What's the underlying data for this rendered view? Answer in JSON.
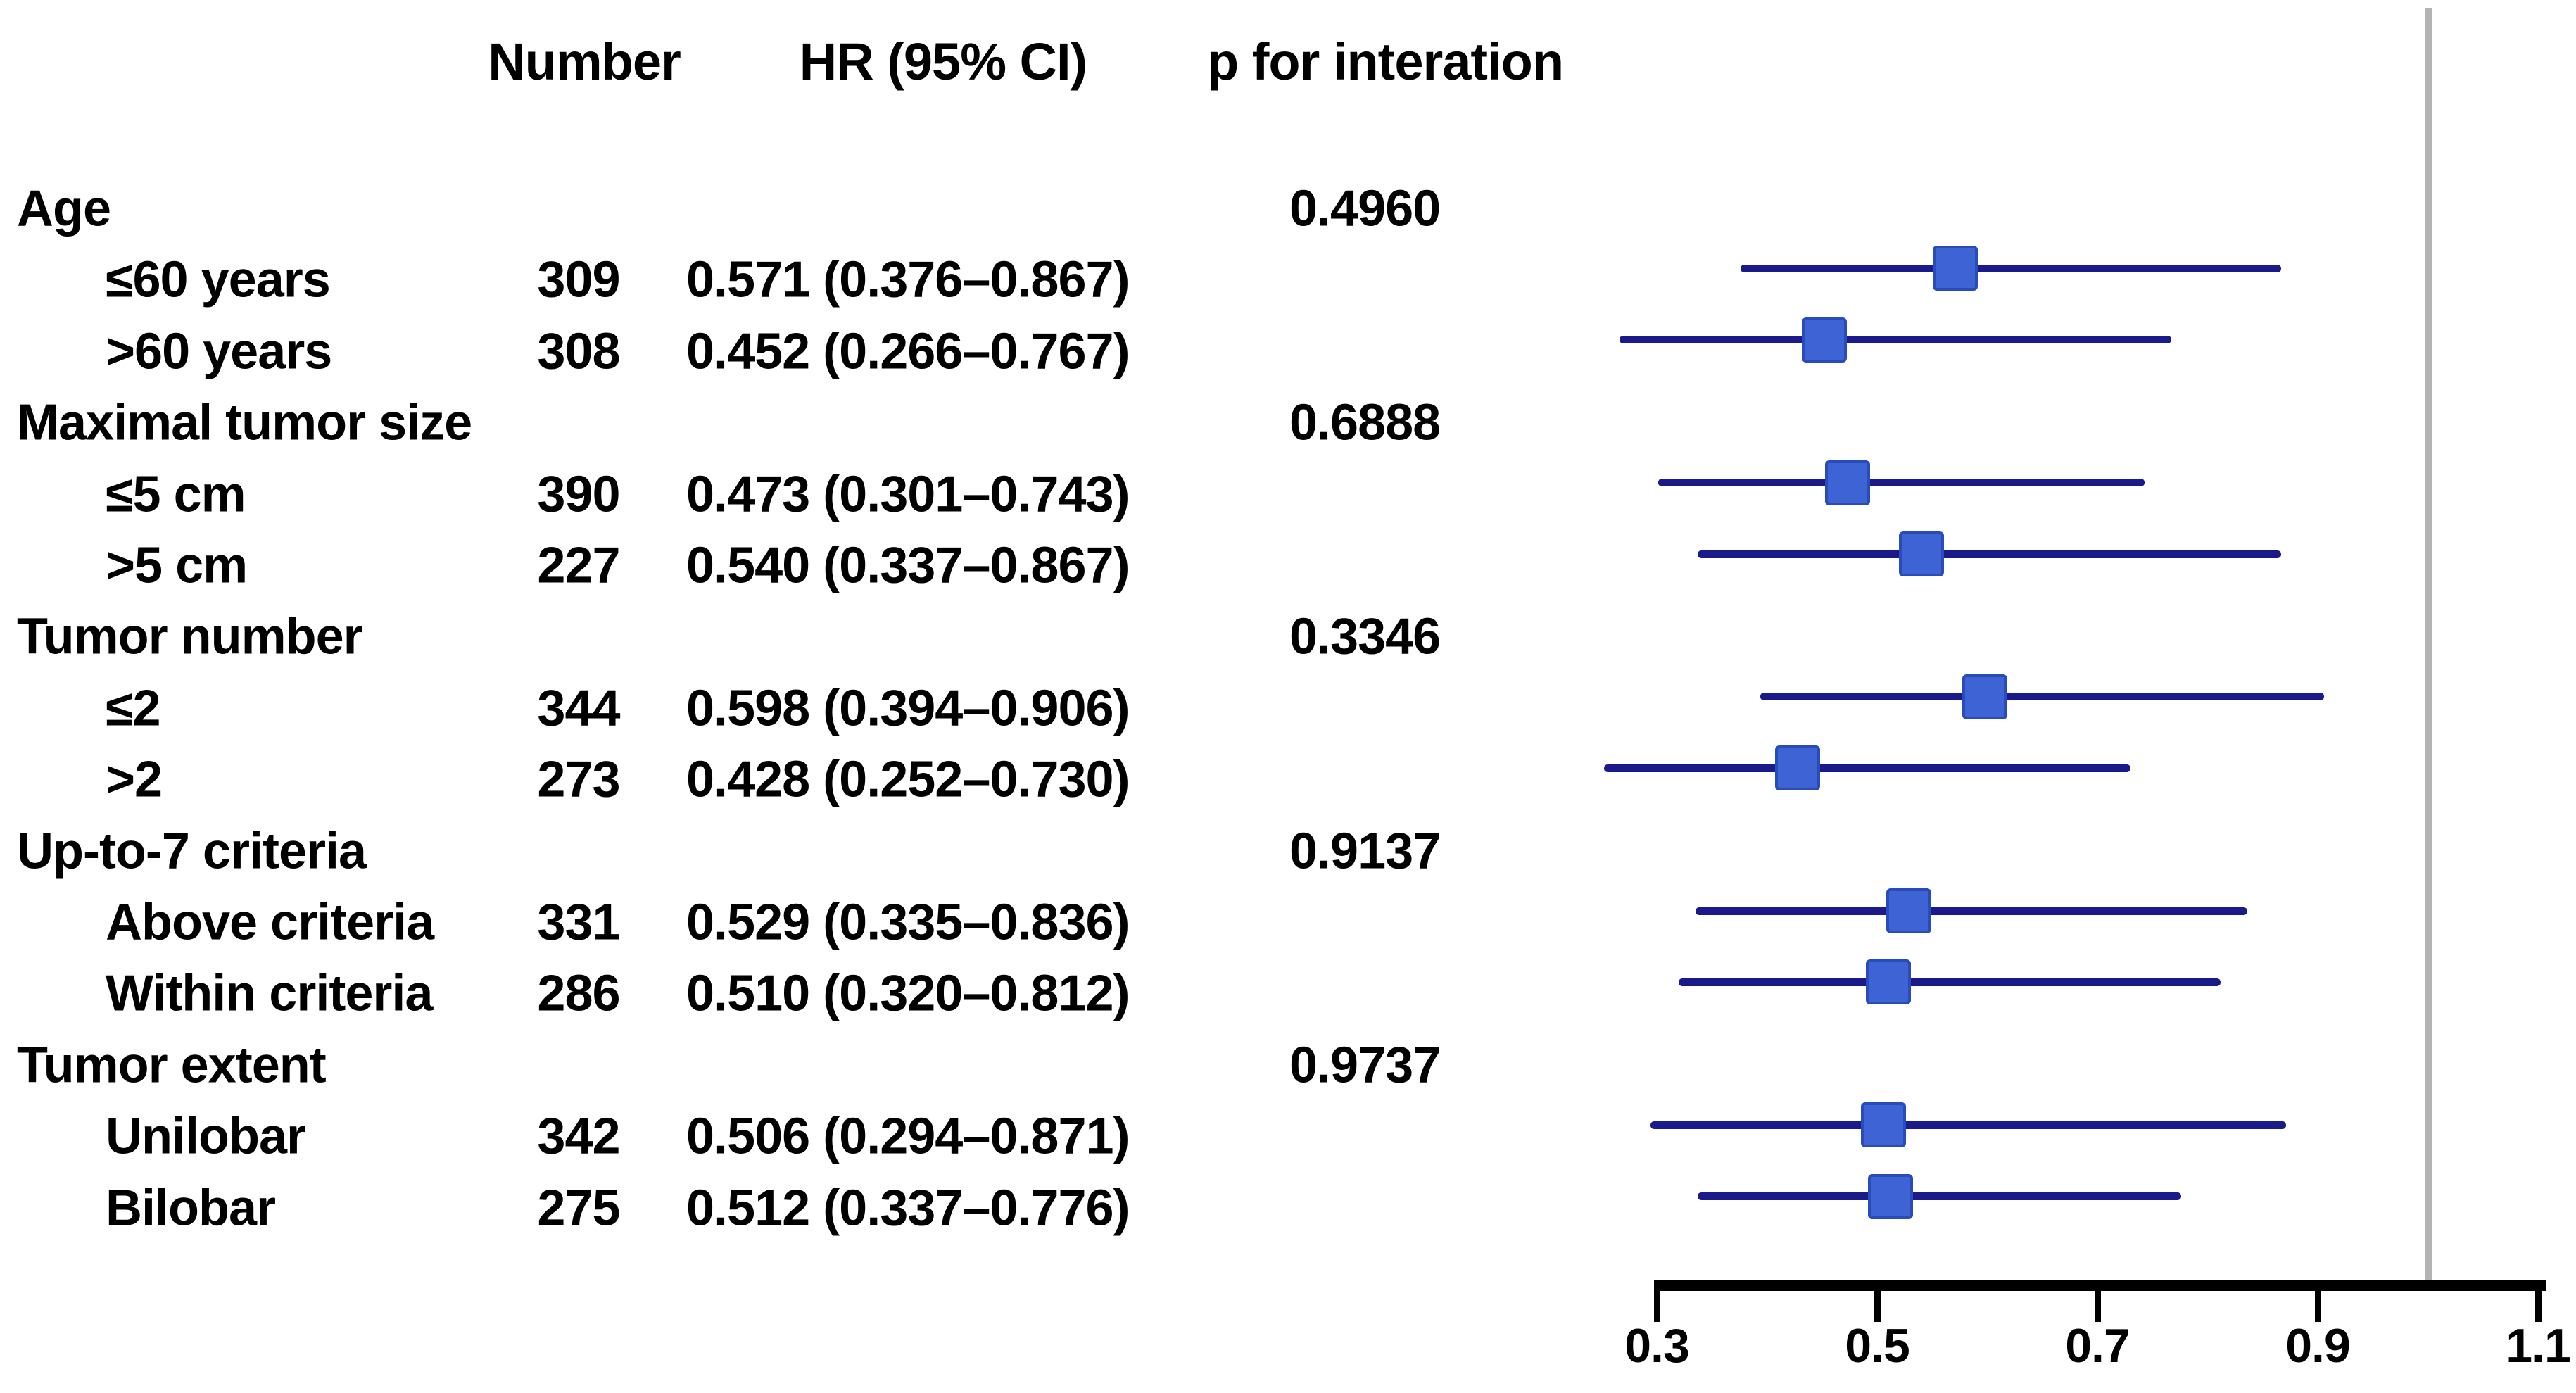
{
  "chart_data": {
    "type": "forest",
    "columns": [
      "Number",
      "HR (95% CI)",
      "p for interation"
    ],
    "axis": {
      "range": [
        0.3,
        1.1
      ],
      "ticks": [
        0.3,
        0.5,
        0.7,
        0.9,
        1.1
      ],
      "tick_labels": [
        "0.3",
        "0.5",
        "0.7",
        "0.9",
        "1.1"
      ],
      "reference_line": 1.0
    },
    "colors": {
      "ci_line": "#1a1a8a",
      "marker_fill": "#3d63d4",
      "marker_border": "#2a4cbb",
      "reference_line": "#b4b4b4",
      "axis": "#000000"
    },
    "groups": [
      {
        "label": "Age",
        "p_for_interaction": "0.4960",
        "rows": [
          {
            "label": "≤60 years",
            "number": "309",
            "hr": 0.571,
            "ci_low": 0.376,
            "ci_high": 0.867,
            "hr_text": "0.571 (0.376–0.867)"
          },
          {
            "label": ">60 years",
            "number": "308",
            "hr": 0.452,
            "ci_low": 0.266,
            "ci_high": 0.767,
            "hr_text": "0.452 (0.266–0.767)"
          }
        ]
      },
      {
        "label": "Maximal tumor size",
        "p_for_interaction": "0.6888",
        "rows": [
          {
            "label": "≤5 cm",
            "number": "390",
            "hr": 0.473,
            "ci_low": 0.301,
            "ci_high": 0.743,
            "hr_text": "0.473 (0.301–0.743)"
          },
          {
            "label": ">5 cm",
            "number": "227",
            "hr": 0.54,
            "ci_low": 0.337,
            "ci_high": 0.867,
            "hr_text": "0.540 (0.337–0.867)"
          }
        ]
      },
      {
        "label": "Tumor number",
        "p_for_interaction": "0.3346",
        "rows": [
          {
            "label": "≤2",
            "number": "344",
            "hr": 0.598,
            "ci_low": 0.394,
            "ci_high": 0.906,
            "hr_text": "0.598 (0.394–0.906)"
          },
          {
            "label": ">2",
            "number": "273",
            "hr": 0.428,
            "ci_low": 0.252,
            "ci_high": 0.73,
            "hr_text": "0.428 (0.252–0.730)"
          }
        ]
      },
      {
        "label": "Up-to-7 criteria",
        "p_for_interaction": "0.9137",
        "rows": [
          {
            "label": "Above criteria",
            "number": "331",
            "hr": 0.529,
            "ci_low": 0.335,
            "ci_high": 0.836,
            "hr_text": "0.529 (0.335–0.836)"
          },
          {
            "label": "Within criteria",
            "number": "286",
            "hr": 0.51,
            "ci_low": 0.32,
            "ci_high": 0.812,
            "hr_text": "0.510 (0.320–0.812)"
          }
        ]
      },
      {
        "label": "Tumor extent",
        "p_for_interaction": "0.9737",
        "rows": [
          {
            "label": "Unilobar",
            "number": "342",
            "hr": 0.506,
            "ci_low": 0.294,
            "ci_high": 0.871,
            "hr_text": "0.506 (0.294–0.871)"
          },
          {
            "label": "Bilobar",
            "number": "275",
            "hr": 0.512,
            "ci_low": 0.337,
            "ci_high": 0.776,
            "hr_text": "0.512 (0.337–0.776)"
          }
        ]
      }
    ]
  }
}
